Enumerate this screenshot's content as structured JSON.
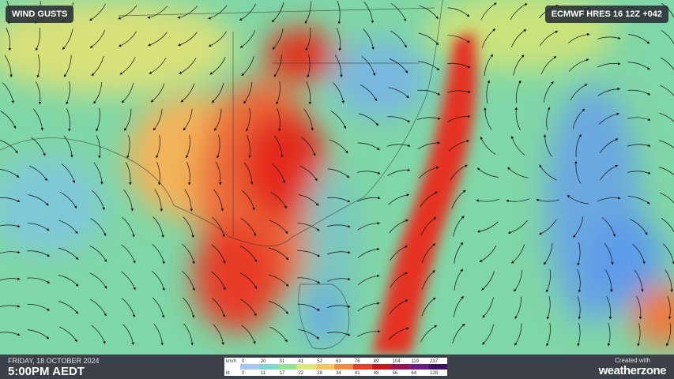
{
  "header": {
    "title": "WIND GUSTS",
    "model": "ECMWF HRES 16 12Z +042"
  },
  "footer": {
    "date": "FRIDAY, 18 OCTOBER 2024",
    "time": "5:00PM AEDT",
    "legend": {
      "rows": [
        {
          "unit": "km/h",
          "labels": [
            0,
            20,
            31,
            41,
            52,
            63,
            76,
            89,
            104,
            119,
            237
          ]
        },
        {
          "unit": "kt",
          "labels": [
            0,
            11,
            17,
            22,
            28,
            34,
            41,
            48,
            56,
            64,
            128
          ]
        }
      ]
    },
    "credit": {
      "prefix": "Created with",
      "brand": "weatherzone"
    }
  }
}
